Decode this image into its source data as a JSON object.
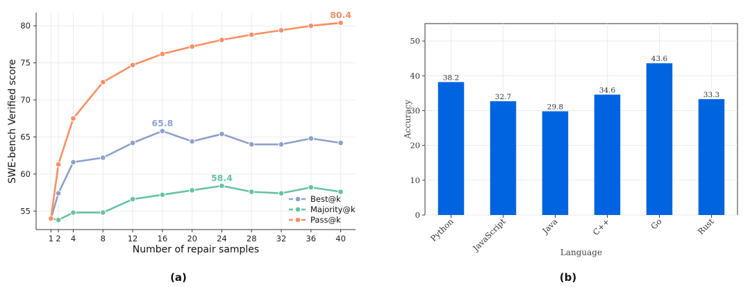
{
  "colors": {
    "best": "#8DA0CB",
    "majority": "#66C2A5",
    "pass": "#FC8D62",
    "bar": "#0064E1",
    "grid": "#ececec",
    "axis": "#333333"
  },
  "chart_data": [
    {
      "type": "line",
      "panel_label": "(a)",
      "xlabel": "Number of repair samples",
      "ylabel": "SWE-bench Verified score",
      "x": [
        1,
        2,
        4,
        8,
        12,
        16,
        20,
        24,
        28,
        32,
        36,
        40
      ],
      "xticks": [
        "1",
        "2",
        "4",
        "8",
        "12",
        "16",
        "20",
        "24",
        "28",
        "32",
        "36",
        "40"
      ],
      "xlim": [
        -1,
        42
      ],
      "yticks": [
        "55",
        "60",
        "65",
        "70",
        "75",
        "80"
      ],
      "ylim": [
        52.5,
        81.8
      ],
      "legend_position": "lower-right",
      "series": [
        {
          "name": "Best@k",
          "color_key": "best",
          "values": [
            54.0,
            57.4,
            61.6,
            62.2,
            64.2,
            65.8,
            64.4,
            65.4,
            64.0,
            64.0,
            64.8,
            64.2
          ],
          "peak_label": "65.8",
          "peak_index": 5
        },
        {
          "name": "Majority@k",
          "color_key": "majority",
          "values": [
            54.0,
            53.8,
            54.8,
            54.8,
            56.6,
            57.2,
            57.8,
            58.4,
            57.6,
            57.4,
            58.2,
            57.6
          ],
          "peak_label": "58.4",
          "peak_index": 7
        },
        {
          "name": "Pass@k",
          "color_key": "pass",
          "values": [
            54.0,
            61.3,
            67.5,
            72.4,
            74.7,
            76.2,
            77.2,
            78.1,
            78.8,
            79.4,
            80.0,
            80.4
          ],
          "peak_label": "80.4",
          "peak_index": 11
        }
      ]
    },
    {
      "type": "bar",
      "panel_label": "(b)",
      "xlabel": "Language",
      "ylabel": "Accuracy",
      "categories": [
        "Python",
        "JavaScript",
        "Java",
        "C++",
        "Go",
        "Rust"
      ],
      "values": [
        38.2,
        32.7,
        29.8,
        34.6,
        43.6,
        33.3
      ],
      "value_labels": [
        "38.2",
        "32.7",
        "29.8",
        "34.6",
        "43.6",
        "33.3"
      ],
      "yticks": [
        "0",
        "10",
        "20",
        "30",
        "40",
        "50"
      ],
      "ylim": [
        0,
        55
      ]
    }
  ]
}
